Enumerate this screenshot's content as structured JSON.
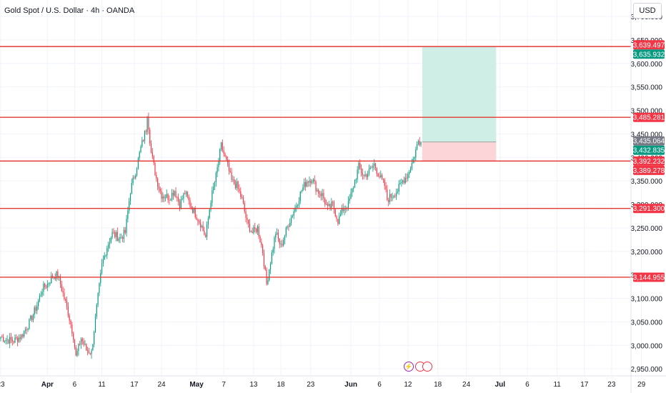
{
  "header": {
    "title": "Gold Spot / U.S. Dollar · 4h · OANDA",
    "currency": "USD"
  },
  "colors": {
    "up": "#089981",
    "down": "#f23645",
    "level_line": "#e53935",
    "target_zone": "#cfeee6",
    "stop_zone": "#fbd5d8",
    "grid": "#f0f3fa",
    "axis_text": "#131722"
  },
  "events": [
    {
      "icon": "lightning-icon",
      "label": "⚡"
    },
    {
      "icon": "us-flag-icon",
      "label": ""
    },
    {
      "icon": "us-flag-icon",
      "label": ""
    }
  ],
  "chart_data": {
    "type": "candlestick",
    "title": "Gold Spot / U.S. Dollar · 4h · OANDA",
    "ylim": [
      2935,
      3735
    ],
    "y_ticks": [
      "3,700.000",
      "3,650.000",
      "3,600.000",
      "3,550.000",
      "3,500.000",
      "3,450.000",
      "3,400.000",
      "3,350.000",
      "3,300.000",
      "3,250.000",
      "3,200.000",
      "3,150.000",
      "3,100.000",
      "3,050.000",
      "3,000.000",
      "2,950.000"
    ],
    "x_ticks": [
      {
        "label": "23",
        "idx": 0
      },
      {
        "label": "Apr",
        "idx": 36,
        "bold": true
      },
      {
        "label": "6",
        "idx": 57
      },
      {
        "label": "11",
        "idx": 78
      },
      {
        "label": "17",
        "idx": 103
      },
      {
        "label": "24",
        "idx": 124
      },
      {
        "label": "May",
        "idx": 151,
        "bold": true
      },
      {
        "label": "7",
        "idx": 172
      },
      {
        "label": "13",
        "idx": 195
      },
      {
        "label": "18",
        "idx": 216
      },
      {
        "label": "23",
        "idx": 239
      },
      {
        "label": "Jun",
        "idx": 270,
        "bold": true
      },
      {
        "label": "6",
        "idx": 292
      },
      {
        "label": "12",
        "idx": 314
      },
      {
        "label": "18",
        "idx": 337
      },
      {
        "label": "24",
        "idx": 359
      },
      {
        "label": "Jul",
        "idx": 385,
        "bold": true
      },
      {
        "label": "6",
        "idx": 406
      },
      {
        "label": "11",
        "idx": 429
      },
      {
        "label": "17",
        "idx": 450
      },
      {
        "label": "23",
        "idx": 471
      },
      {
        "label": "29",
        "idx": 494
      }
    ],
    "horizontal_levels": [
      3635.932,
      3485.281,
      3392.232,
      3291.3,
      3144.955
    ],
    "price_labels": [
      {
        "text": "3,639.497",
        "value": 3639.497,
        "color": "#f23645"
      },
      {
        "text": "3,635.932",
        "value": 3635.932,
        "color": "#089981"
      },
      {
        "text": "3,485.281",
        "value": 3485.281,
        "color": "#f23645"
      },
      {
        "text": "3,435.064",
        "value": 3435.064,
        "color": "#787b86"
      },
      {
        "text": "3,432.835",
        "value": 3432.835,
        "color": "#089981"
      },
      {
        "text": "3,392.232",
        "value": 3392.232,
        "color": "#f23645"
      },
      {
        "text": "3,389.278",
        "value": 3389.278,
        "color": "#f23645"
      },
      {
        "text": "3,291.300",
        "value": 3291.3,
        "color": "#f23645"
      },
      {
        "text": "3,144.955",
        "value": 3144.955,
        "color": "#f23645"
      }
    ],
    "position": {
      "start_idx": 325,
      "end_idx": 382,
      "entry": 3432.835,
      "target": 3635.932,
      "stop": 3392.232
    },
    "anchors": [
      [
        0,
        3018
      ],
      [
        4,
        3012
      ],
      [
        10,
        3010
      ],
      [
        16,
        3020
      ],
      [
        22,
        3048
      ],
      [
        28,
        3085
      ],
      [
        32,
        3120
      ],
      [
        36,
        3130
      ],
      [
        40,
        3148
      ],
      [
        44,
        3150
      ],
      [
        48,
        3110
      ],
      [
        52,
        3070
      ],
      [
        56,
        3020
      ],
      [
        58,
        2975
      ],
      [
        62,
        3015
      ],
      [
        66,
        2990
      ],
      [
        70,
        2985
      ],
      [
        74,
        3080
      ],
      [
        78,
        3170
      ],
      [
        82,
        3210
      ],
      [
        86,
        3238
      ],
      [
        92,
        3228
      ],
      [
        96,
        3240
      ],
      [
        100,
        3330
      ],
      [
        104,
        3370
      ],
      [
        108,
        3420
      ],
      [
        112,
        3460
      ],
      [
        113,
        3495
      ],
      [
        116,
        3410
      ],
      [
        120,
        3355
      ],
      [
        124,
        3320
      ],
      [
        130,
        3315
      ],
      [
        134,
        3330
      ],
      [
        138,
        3300
      ],
      [
        142,
        3325
      ],
      [
        146,
        3300
      ],
      [
        150,
        3280
      ],
      [
        154,
        3260
      ],
      [
        158,
        3230
      ],
      [
        162,
        3310
      ],
      [
        166,
        3360
      ],
      [
        170,
        3425
      ],
      [
        174,
        3390
      ],
      [
        178,
        3350
      ],
      [
        182,
        3340
      ],
      [
        186,
        3310
      ],
      [
        190,
        3260
      ],
      [
        194,
        3240
      ],
      [
        198,
        3250
      ],
      [
        202,
        3200
      ],
      [
        205,
        3130
      ],
      [
        208,
        3180
      ],
      [
        212,
        3240
      ],
      [
        216,
        3210
      ],
      [
        222,
        3260
      ],
      [
        228,
        3300
      ],
      [
        232,
        3330
      ],
      [
        236,
        3350
      ],
      [
        240,
        3355
      ],
      [
        244,
        3330
      ],
      [
        248,
        3320
      ],
      [
        252,
        3290
      ],
      [
        256,
        3300
      ],
      [
        260,
        3265
      ],
      [
        264,
        3290
      ],
      [
        268,
        3300
      ],
      [
        272,
        3340
      ],
      [
        276,
        3380
      ],
      [
        280,
        3360
      ],
      [
        284,
        3370
      ],
      [
        288,
        3385
      ],
      [
        292,
        3360
      ],
      [
        296,
        3340
      ],
      [
        298,
        3310
      ],
      [
        302,
        3320
      ],
      [
        306,
        3330
      ],
      [
        310,
        3350
      ],
      [
        314,
        3365
      ],
      [
        318,
        3395
      ],
      [
        322,
        3435
      ],
      [
        324,
        3432.835
      ]
    ]
  }
}
